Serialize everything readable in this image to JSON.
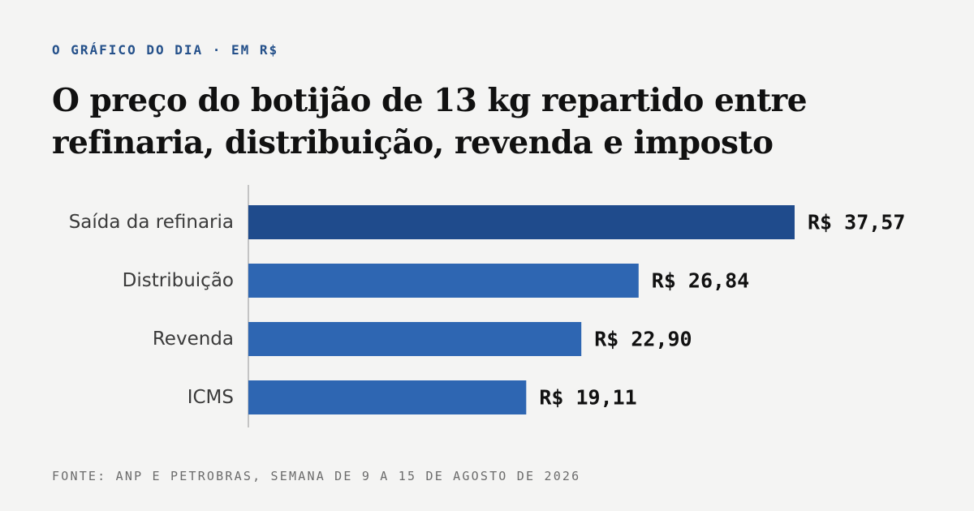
{
  "header": {
    "kicker": "O GRÁFICO DO DIA · EM R$",
    "title": "O preço do botijão de 13 kg repartido entre refinaria, distribuição, revenda e imposto"
  },
  "footer": {
    "source": "FONTE: ANP E PETROBRAS, SEMANA DE 9 A 15 DE AGOSTO DE 2026"
  },
  "chart_data": {
    "type": "bar",
    "orientation": "horizontal",
    "categories": [
      "Saída da refinaria",
      "Distribuição",
      "Revenda",
      "ICMS"
    ],
    "values": [
      37.57,
      26.84,
      22.9,
      19.11
    ],
    "value_labels": [
      "R$ 37,57",
      "R$ 26,84",
      "R$ 22,90",
      "R$ 19,11"
    ],
    "bar_colors": [
      "#1f4b8c",
      "#2e66b2",
      "#2e66b2",
      "#2e66b2"
    ],
    "axis_color": "#c4c4c4",
    "xlim": [
      0,
      37.57
    ],
    "grid": false,
    "legend": "none"
  }
}
